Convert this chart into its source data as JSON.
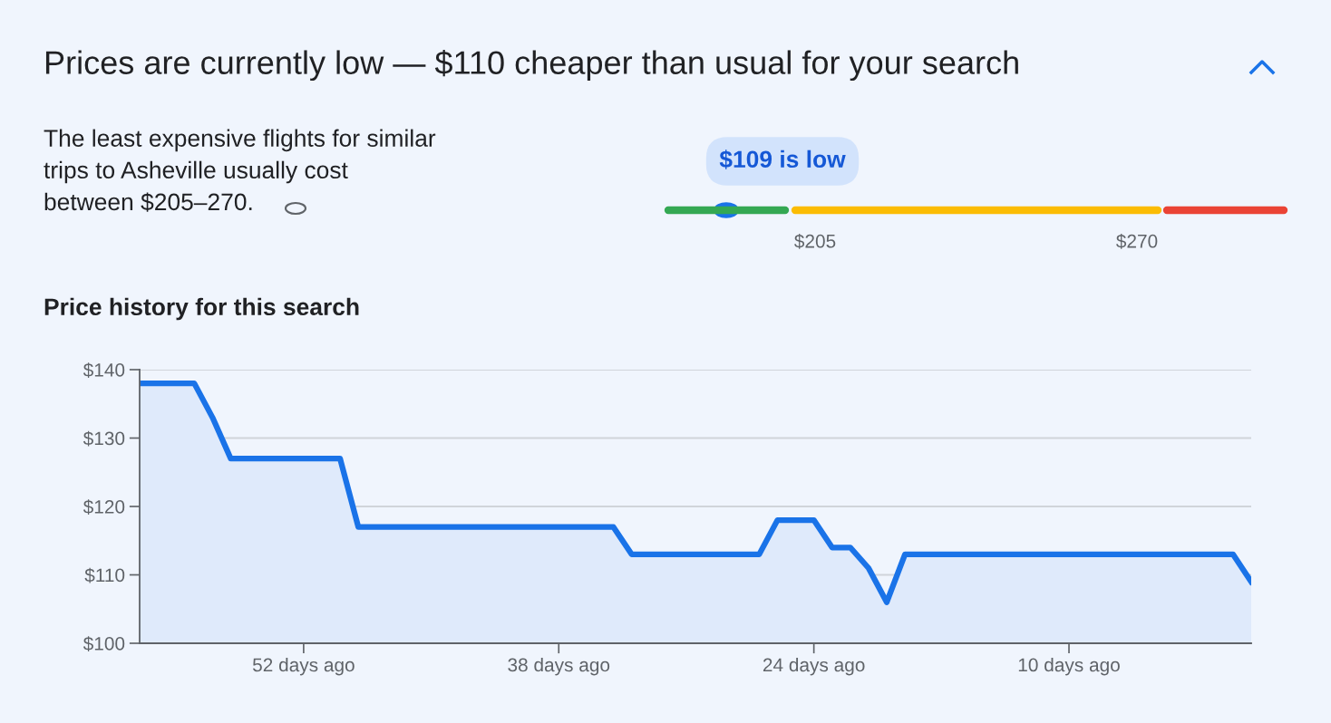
{
  "chart_data": [
    {
      "type": "other",
      "title": "Prices are currently low — $110 cheaper than usual for your search",
      "subtitle": "The least expensive flights for similar\ntrips to Asheville usually cost\nbetween $205–270.",
      "annotations": [
        "$109 is low",
        "$205",
        "$270"
      ],
      "colors": [
        "#34a853",
        "#fbbc04",
        "#ea4335"
      ]
    },
    {
      "type": "area",
      "title": "Price history for this search",
      "x": [
        -61,
        -58,
        -57,
        -56,
        -50,
        -49,
        -35,
        -34,
        -27,
        -26,
        -24,
        -23,
        -22,
        -21,
        -20,
        -19,
        -1,
        0
      ],
      "series": [
        {
          "color": "#1a73e8",
          "values": [
            138,
            138,
            133,
            127,
            127,
            117,
            117,
            113,
            113,
            118,
            118,
            114,
            114,
            111,
            106,
            113,
            113,
            109
          ]
        }
      ],
      "xlim": [
        -61,
        0
      ],
      "ylim": [
        100,
        140
      ],
      "xticks": [
        {
          "value": -52,
          "label": "52 days ago"
        },
        {
          "value": -38,
          "label": "38 days ago"
        },
        {
          "value": -24,
          "label": "24 days ago"
        },
        {
          "value": -10,
          "label": "10 days ago"
        }
      ],
      "yticks": [
        {
          "value": 100,
          "label": "$100"
        },
        {
          "value": 110,
          "label": "$110"
        },
        {
          "value": 120,
          "label": "$120"
        },
        {
          "value": 130,
          "label": "$130"
        },
        {
          "value": 140,
          "label": "$140"
        }
      ],
      "grid": "y",
      "legend": false,
      "marker": "none",
      "line_style": "solid"
    }
  ]
}
